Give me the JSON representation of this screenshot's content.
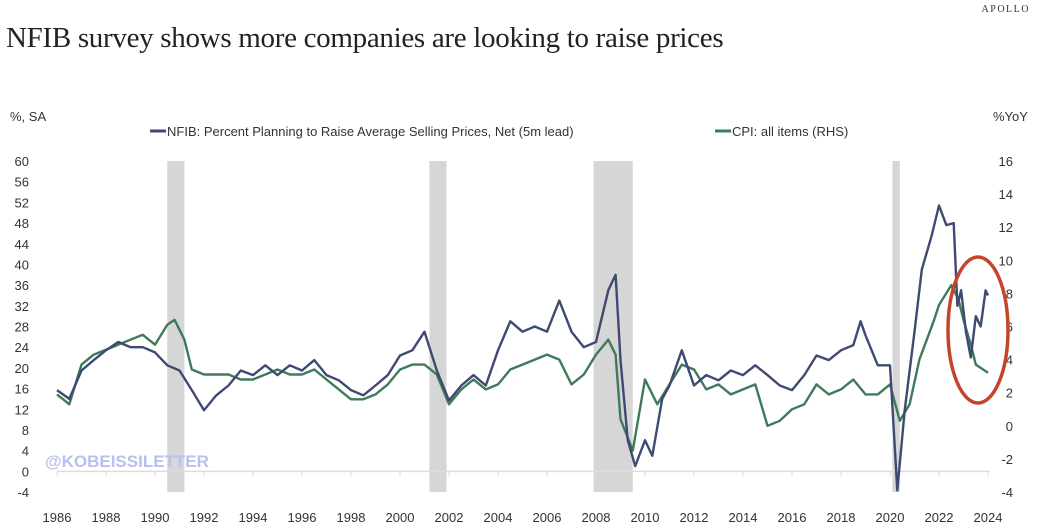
{
  "brand": "APOLLO",
  "title": "NFIB survey shows more companies are looking to raise prices",
  "watermark": "@KOBEISSILETTER",
  "chart_data": {
    "type": "line",
    "title": "NFIB survey shows more companies are looking to raise prices",
    "ylabel_left": "%, SA",
    "ylabel_right": "%YoY",
    "ylim_left": [
      -4,
      60
    ],
    "ylim_right": [
      -4,
      16
    ],
    "yticks_left": [
      "60",
      "56",
      "52",
      "48",
      "44",
      "40",
      "36",
      "32",
      "28",
      "24",
      "20",
      "16",
      "12",
      "8",
      "4",
      "0",
      "-4"
    ],
    "yticks_right": [
      "16",
      "14",
      "12",
      "10",
      "8",
      "6",
      "4",
      "2",
      "0",
      "-2",
      "-4"
    ],
    "xlim": [
      1986,
      2024
    ],
    "xticks": [
      "1986",
      "1988",
      "1990",
      "1992",
      "1994",
      "1996",
      "1998",
      "2000",
      "2002",
      "2004",
      "2006",
      "2008",
      "2010",
      "2012",
      "2014",
      "2016",
      "2018",
      "2020",
      "2022",
      "2024"
    ],
    "legend_position": "top",
    "recessions": [
      [
        1990.5,
        1991.2
      ],
      [
        2001.2,
        2001.9
      ],
      [
        2007.9,
        2009.5
      ],
      [
        2020.1,
        2020.4
      ]
    ],
    "annotation": "red circle highlighting 2023-2024 rise",
    "colors": {
      "nfib": "#3f4a72",
      "cpi": "#3f7a5a",
      "recession": "#d6d6d6",
      "circle": "#c4452b"
    },
    "series": [
      {
        "name": "NFIB: Percent Planning to Raise Average Selling Prices, Net (5m lead)",
        "axis": "left",
        "x": [
          1986,
          1986.5,
          1987,
          1987.5,
          1988,
          1988.5,
          1989,
          1989.5,
          1990,
          1990.5,
          1991,
          1991.5,
          1992,
          1992.5,
          1993,
          1993.5,
          1994,
          1994.5,
          1995,
          1995.5,
          1996,
          1996.5,
          1997,
          1997.5,
          1998,
          1998.5,
          1999,
          1999.5,
          2000,
          2000.5,
          2001,
          2001.5,
          2002,
          2002.5,
          2003,
          2003.5,
          2004,
          2004.5,
          2005,
          2005.5,
          2006,
          2006.5,
          2007,
          2007.5,
          2008,
          2008.5,
          2008.8,
          2009,
          2009.3,
          2009.6,
          2010,
          2010.3,
          2010.7,
          2011,
          2011.5,
          2012,
          2012.5,
          2013,
          2013.5,
          2014,
          2014.5,
          2015,
          2015.5,
          2016,
          2016.5,
          2017,
          2017.5,
          2018,
          2018.5,
          2018.8,
          2019,
          2019.5,
          2020,
          2020.3,
          2020.6,
          2021,
          2021.3,
          2021.7,
          2022,
          2022.3,
          2022.6,
          2022.75,
          2022.9,
          2023.1,
          2023.3,
          2023.5,
          2023.7,
          2023.9,
          2024
        ],
        "values": [
          15.7,
          14,
          19.5,
          21.5,
          23.4,
          25,
          24,
          24,
          23,
          20.5,
          19.5,
          15.7,
          11.8,
          14.7,
          16.6,
          19.5,
          18.6,
          20.5,
          18.6,
          20.5,
          19.5,
          21.5,
          18.6,
          17.6,
          15.7,
          14.7,
          16.6,
          18.6,
          22.4,
          23.4,
          27,
          19.5,
          13.7,
          16.6,
          18.6,
          16.6,
          23.4,
          29,
          27,
          28,
          27,
          33,
          27,
          24,
          25,
          35,
          38,
          21.5,
          6,
          1,
          6,
          3,
          14,
          16.6,
          23.4,
          16.6,
          18.6,
          17.6,
          19.5,
          18.6,
          20.5,
          18.6,
          16.6,
          15.7,
          18.6,
          22.4,
          21.5,
          23.4,
          24.4,
          29,
          26.3,
          20.5,
          20.5,
          -3.7,
          11.8,
          27,
          39,
          45.6,
          51.4,
          47.6,
          48,
          32,
          35,
          27,
          22,
          30,
          28,
          35,
          34
        ]
      },
      {
        "name": "CPI: all items (RHS)",
        "axis": "right",
        "x": [
          1986,
          1986.5,
          1987,
          1987.5,
          1988,
          1988.5,
          1989,
          1989.5,
          1990,
          1990.5,
          1990.8,
          1991.2,
          1991.5,
          1992,
          1992.5,
          1993,
          1993.5,
          1994,
          1994.5,
          1995,
          1995.5,
          1996,
          1996.5,
          1997,
          1997.5,
          1998,
          1998.5,
          1999,
          1999.5,
          2000,
          2000.5,
          2001,
          2001.5,
          2002,
          2002.5,
          2003,
          2003.5,
          2004,
          2004.5,
          2005,
          2005.5,
          2006,
          2006.5,
          2007,
          2007.5,
          2008,
          2008.5,
          2008.8,
          2009,
          2009.5,
          2010,
          2010.5,
          2011,
          2011.5,
          2012,
          2012.5,
          2013,
          2013.5,
          2014,
          2014.5,
          2015,
          2015.5,
          2016,
          2016.5,
          2017,
          2017.5,
          2018,
          2018.5,
          2019,
          2019.5,
          2020,
          2020.4,
          2020.8,
          2021.2,
          2021.5,
          2021.8,
          2022,
          2022.5,
          2022.8,
          2023,
          2023.3,
          2023.5,
          2023.8,
          2024
        ],
        "values": [
          1.9,
          1.3,
          3.7,
          4.3,
          4.6,
          4.9,
          5.2,
          5.5,
          4.9,
          6.1,
          6.4,
          5.2,
          3.4,
          3.1,
          3.1,
          3.1,
          2.8,
          2.8,
          3.1,
          3.4,
          3.1,
          3.1,
          3.4,
          2.8,
          2.2,
          1.6,
          1.6,
          1.9,
          2.5,
          3.4,
          3.7,
          3.7,
          3.1,
          1.3,
          2.2,
          2.8,
          2.2,
          2.5,
          3.4,
          3.7,
          4,
          4.3,
          4,
          2.5,
          3.1,
          4.3,
          5.2,
          4.3,
          0.4,
          -1.5,
          2.8,
          1.3,
          2.5,
          3.7,
          3.4,
          2.2,
          2.5,
          1.9,
          2.2,
          2.5,
          0,
          0.3,
          1,
          1.3,
          2.5,
          1.9,
          2.2,
          2.8,
          1.9,
          1.9,
          2.5,
          0.3,
          1.3,
          4,
          5.2,
          6.4,
          7.3,
          8.5,
          7.6,
          6.4,
          4.9,
          3.7,
          3.4,
          3.2
        ]
      }
    ]
  }
}
